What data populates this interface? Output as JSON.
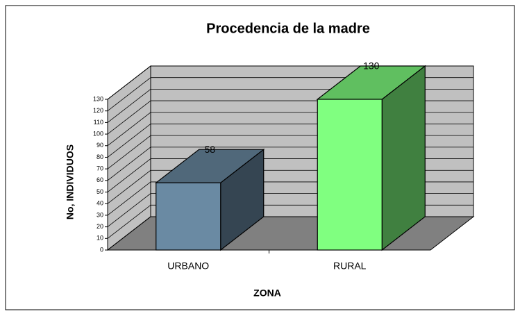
{
  "chart_data": {
    "type": "bar",
    "title": "Procedencia de la madre",
    "categories": [
      "URBANO",
      "RURAL"
    ],
    "series": [
      {
        "name": "No, INDIVIDUOS",
        "values": [
          58,
          130
        ],
        "colors": [
          "#6a8aa3",
          "#80ff80"
        ]
      }
    ],
    "y_label": "No,  INDIVIDUOS",
    "x_label": "ZONA",
    "ylim": [
      0,
      130
    ],
    "yticks": [
      0,
      10,
      20,
      30,
      40,
      50,
      60,
      70,
      80,
      90,
      100,
      110,
      120,
      130
    ],
    "grid": true
  }
}
